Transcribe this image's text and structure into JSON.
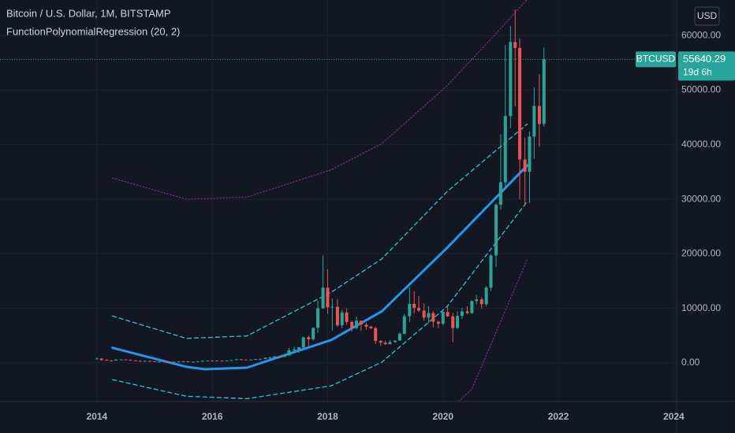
{
  "chart_data": {
    "type": "candlestick",
    "title": "Bitcoin / U.S. Dollar, 1M, BITSTAMP",
    "indicator": "FunctionPolynomialRegression (20, 2)",
    "currency": "USD",
    "symbol": "BTCUSD",
    "last_price": 55640.29,
    "countdown": "19d 6h",
    "up_color": "#26a69a",
    "down_color": "#ef5350",
    "grid": true,
    "xlim": [
      2012.32,
      2024.05
    ],
    "xticks": [
      2014,
      2016,
      2018,
      2020,
      2022,
      2024
    ],
    "ylim": [
      -7070,
      66520
    ],
    "yticks": [
      {
        "value": 0,
        "label": "0.00"
      },
      {
        "value": 10000,
        "label": "10000.00"
      },
      {
        "value": 20000,
        "label": "20000.00"
      },
      {
        "value": 30000,
        "label": "30000.00"
      },
      {
        "value": 40000,
        "label": "40000.00"
      },
      {
        "value": 50000,
        "label": "50000.00"
      },
      {
        "value": 60000,
        "label": "60000.00"
      }
    ],
    "candles": {
      "x": [
        2014,
        2014.08,
        2014.17,
        2014.25,
        2014.33,
        2014.42,
        2014.5,
        2014.58,
        2014.67,
        2014.75,
        2014.83,
        2014.92,
        2015,
        2015.08,
        2015.17,
        2015.25,
        2015.33,
        2015.42,
        2015.5,
        2015.58,
        2015.67,
        2015.75,
        2015.83,
        2015.92,
        2016,
        2016.08,
        2016.17,
        2016.25,
        2016.33,
        2016.42,
        2016.5,
        2016.58,
        2016.67,
        2016.75,
        2016.83,
        2016.92,
        2017,
        2017.08,
        2017.17,
        2017.25,
        2017.33,
        2017.42,
        2017.5,
        2017.58,
        2017.67,
        2017.75,
        2017.83,
        2017.92,
        2018,
        2018.08,
        2018.17,
        2018.25,
        2018.33,
        2018.42,
        2018.5,
        2018.58,
        2018.67,
        2018.75,
        2018.83,
        2018.92,
        2019,
        2019.08,
        2019.17,
        2019.25,
        2019.33,
        2019.42,
        2019.5,
        2019.58,
        2019.67,
        2019.75,
        2019.83,
        2019.92,
        2020,
        2020.08,
        2020.17,
        2020.25,
        2020.33,
        2020.42,
        2020.5,
        2020.58,
        2020.67,
        2020.75,
        2020.83,
        2020.92,
        2021,
        2021.08,
        2021.17,
        2021.25,
        2021.33,
        2021.42,
        2021.5,
        2021.58,
        2021.67,
        2021.75
      ],
      "open": [
        732,
        800,
        550,
        450,
        445,
        630,
        640,
        590,
        480,
        385,
        340,
        375,
        320,
        218,
        254,
        244,
        236,
        230,
        263,
        284,
        230,
        236,
        314,
        377,
        430,
        368,
        437,
        416,
        448,
        530,
        670,
        624,
        575,
        608,
        700,
        745,
        963,
        970,
        1190,
        1080,
        1350,
        2300,
        2480,
        2870,
        4700,
        4340,
        6450,
        10000,
        13800,
        10200,
        10300,
        6900,
        9240,
        7500,
        6400,
        7730,
        7030,
        6630,
        6370,
        4040,
        3740,
        3440,
        3820,
        4100,
        5320,
        8570,
        10820,
        10080,
        9600,
        8300,
        9150,
        7550,
        7190,
        9350,
        8540,
        6410,
        8620,
        9450,
        9140,
        11350,
        11650,
        10780,
        13800,
        19700,
        28990,
        33110,
        45240,
        58800,
        57720,
        37300,
        35040,
        41490,
        47100,
        43800
      ],
      "high": [
        1000,
        850,
        700,
        530,
        630,
        680,
        660,
        600,
        520,
        480,
        460,
        390,
        320,
        265,
        300,
        260,
        248,
        270,
        320,
        320,
        255,
        330,
        500,
        465,
        450,
        450,
        445,
        470,
        550,
        770,
        700,
        620,
        620,
        720,
        750,
        975,
        1150,
        1200,
        1280,
        1370,
        2760,
        3000,
        2920,
        4750,
        5000,
        6470,
        11400,
        19700,
        17200,
        11800,
        11700,
        9760,
        10000,
        7760,
        8500,
        7770,
        7400,
        6800,
        6600,
        4200,
        4100,
        4200,
        4100,
        5620,
        9000,
        13900,
        13150,
        12300,
        10900,
        10400,
        9500,
        7750,
        9600,
        10500,
        9200,
        9450,
        10100,
        10400,
        11450,
        12480,
        12100,
        14100,
        19900,
        29300,
        41900,
        58300,
        61800,
        64800,
        59500,
        41300,
        42400,
        50500,
        52900,
        57800
      ],
      "low": [
        700,
        410,
        430,
        340,
        420,
        520,
        560,
        440,
        380,
        300,
        320,
        300,
        160,
        210,
        235,
        215,
        225,
        220,
        250,
        200,
        225,
        235,
        300,
        350,
        350,
        370,
        400,
        410,
        440,
        520,
        590,
        470,
        570,
        600,
        690,
        740,
        750,
        920,
        890,
        1060,
        1350,
        2200,
        1850,
        2700,
        2950,
        4100,
        5500,
        10000,
        9000,
        5900,
        6600,
        6400,
        7000,
        5750,
        6100,
        5880,
        6100,
        6200,
        3500,
        3150,
        3350,
        3380,
        3700,
        4080,
        5300,
        7500,
        9100,
        9350,
        7700,
        7300,
        6500,
        6400,
        6850,
        8400,
        3800,
        6200,
        8100,
        8900,
        9000,
        10700,
        9900,
        10400,
        13200,
        17600,
        28100,
        32300,
        43000,
        47000,
        30000,
        28800,
        29300,
        37400,
        39600,
        43300
      ],
      "close": [
        800,
        550,
        450,
        445,
        630,
        640,
        590,
        480,
        385,
        340,
        375,
        320,
        218,
        254,
        244,
        236,
        230,
        263,
        284,
        230,
        236,
        314,
        377,
        430,
        368,
        437,
        416,
        448,
        530,
        670,
        624,
        575,
        608,
        700,
        745,
        963,
        970,
        1190,
        1080,
        1350,
        2300,
        2480,
        2870,
        4700,
        4340,
        6450,
        10000,
        13800,
        10200,
        10300,
        6900,
        9240,
        7500,
        6400,
        7730,
        7030,
        6630,
        6370,
        4040,
        3740,
        3440,
        3820,
        4100,
        5320,
        8570,
        10820,
        10080,
        9600,
        8300,
        9150,
        7550,
        7190,
        9350,
        8540,
        6410,
        8620,
        9450,
        9140,
        11350,
        11650,
        10780,
        13800,
        19700,
        28990,
        33110,
        45240,
        58800,
        57720,
        37300,
        35040,
        41490,
        47100,
        43800,
        55640.29
      ]
    },
    "lines": [
      {
        "style": "dotted",
        "color": "#9c27b0",
        "width": 1,
        "x": [
          2014.27,
          2015.55,
          2016.6,
          2018.06,
          2018.94,
          2020.07,
          2020.93,
          2021.5
        ],
        "values": [
          33900,
          30000,
          30400,
          35400,
          40200,
          50800,
          60500,
          67100
        ]
      },
      {
        "style": "dotted",
        "color": "#9c27b0",
        "width": 1,
        "x": [
          2020.07,
          2020.5,
          2021.46
        ],
        "values": [
          -9000,
          -4800,
          19000
        ]
      },
      {
        "style": "dashed",
        "color": "#26c6da",
        "width": 1.3,
        "x": [
          2014.27,
          2015.55,
          2016.6,
          2018.06,
          2018.94,
          2020.07,
          2021.46
        ],
        "values": [
          8600,
          4500,
          4950,
          12950,
          19070,
          31400,
          43800
        ]
      },
      {
        "style": "dashed",
        "color": "#26c6da",
        "width": 1.3,
        "x": [
          2014.27,
          2015.55,
          2016.6,
          2018.06,
          2018.94,
          2020.07,
          2021.46
        ],
        "values": [
          -3060,
          -6100,
          -6550,
          -4200,
          150,
          10330,
          29600
        ]
      },
      {
        "style": "solid",
        "color": "#2196f3",
        "width": 3,
        "x": [
          2014.27,
          2015.55,
          2015.87,
          2016.6,
          2018.06,
          2018.94,
          2020.07,
          2021.46
        ],
        "values": [
          2770,
          -700,
          -1160,
          -870,
          4200,
          9460,
          21100,
          36200
        ]
      }
    ]
  }
}
